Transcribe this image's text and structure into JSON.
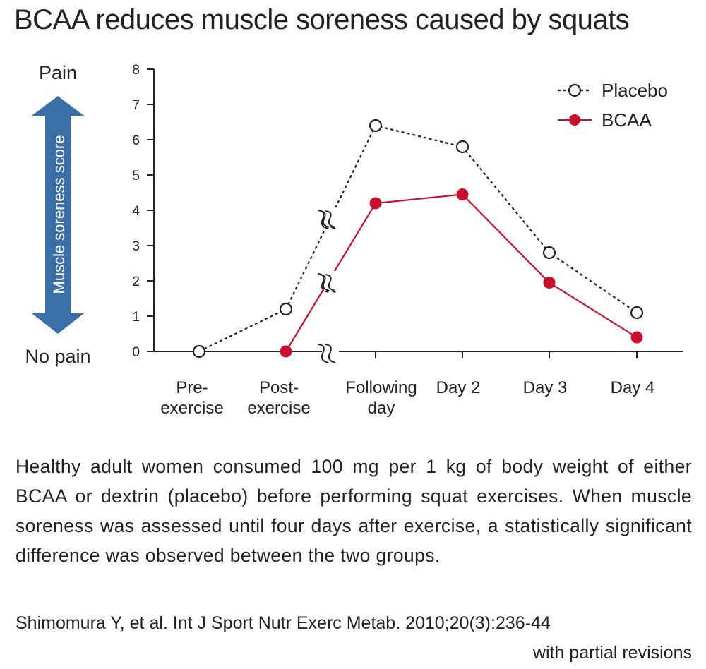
{
  "title": "BCAA reduces muscle soreness caused by squats",
  "description": "Healthy adult women consumed 100 mg per 1 kg of body weight of either BCAA or dextrin (placebo) before performing squat exercises. When muscle soreness was assessed until four days after exercise, a statistically significant difference was observed between the two groups.",
  "reference": {
    "citation": "Shimomura Y, et al. Int J Sport Nutr Exerc Metab. 2010;20(3):236-44",
    "note": "with partial revisions"
  },
  "colors": {
    "bcaa": "#c8102e",
    "placebo": "#222222",
    "arrow": "#3a6fa8",
    "axis": "#222222"
  },
  "chart_data": {
    "type": "line",
    "title": "",
    "ylabel": "Muscle soreness score",
    "ylabel_top": "Pain",
    "ylabel_bottom": "No pain",
    "ylim": [
      0,
      8
    ],
    "yticks": [
      0,
      1,
      2,
      3,
      4,
      5,
      6,
      7,
      8
    ],
    "grid": false,
    "legend_position": "top-right",
    "categories": [
      [
        "Pre-",
        "exercise"
      ],
      [
        "Post-",
        "exercise"
      ],
      [
        "Following",
        "day"
      ],
      [
        "Day 2"
      ],
      [
        "Day 3"
      ],
      [
        "Day 4"
      ]
    ],
    "series": [
      {
        "name": "Placebo",
        "style": "dashed-open-circle",
        "values": [
          0,
          1.2,
          6.4,
          5.8,
          2.8,
          1.1
        ]
      },
      {
        "name": "BCAA",
        "style": "solid-filled-circle",
        "values": [
          null,
          0,
          4.2,
          4.45,
          1.95,
          0.4
        ]
      }
    ]
  }
}
